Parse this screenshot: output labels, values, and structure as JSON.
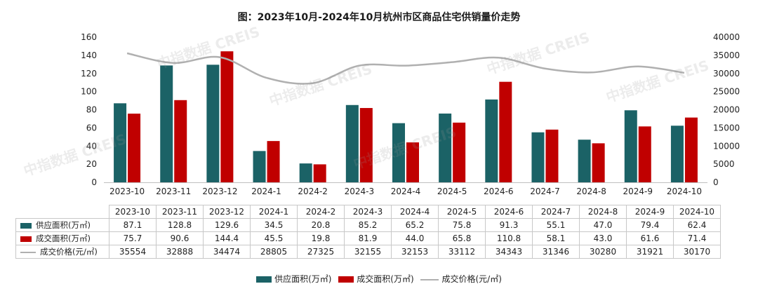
{
  "title": "图：2023年10月-2024年10月杭州市区商品住宅供销量价走势",
  "watermark": "中指数据 CREIS",
  "colors": {
    "supply": "#1b6266",
    "sales": "#c00000",
    "price": "#b0b0b0"
  },
  "legend": {
    "supply": "供应面积(万㎡)",
    "sales": "成交面积(万㎡)",
    "price": "成交价格(元/㎡)"
  },
  "chart_data": {
    "type": "bar",
    "title": "图：2023年10月-2024年10月杭州市区商品住宅供销量价走势",
    "categories": [
      "2023-10",
      "2023-11",
      "2023-12",
      "2024-1",
      "2024-2",
      "2024-3",
      "2024-4",
      "2024-5",
      "2024-6",
      "2024-7",
      "2024-8",
      "2024-9",
      "2024-10"
    ],
    "series": [
      {
        "name": "供应面积(万㎡)",
        "type": "bar",
        "axis": "left",
        "values": [
          87.1,
          128.8,
          129.6,
          34.5,
          20.8,
          85.2,
          65.2,
          75.8,
          91.3,
          55.1,
          47.0,
          79.4,
          62.4
        ]
      },
      {
        "name": "成交面积(万㎡)",
        "type": "bar",
        "axis": "left",
        "values": [
          75.7,
          90.6,
          144.4,
          45.5,
          19.8,
          81.9,
          44.0,
          65.8,
          110.8,
          58.1,
          43.0,
          61.6,
          71.4
        ]
      },
      {
        "name": "成交价格(元/㎡)",
        "type": "line",
        "axis": "right",
        "values": [
          35554,
          32888,
          34474,
          28805,
          27325,
          32155,
          32153,
          33112,
          34343,
          31346,
          30280,
          31921,
          30170
        ]
      }
    ],
    "y_left": {
      "min": 0,
      "max": 160,
      "step": 20,
      "ticks": [
        "0",
        "20",
        "40",
        "60",
        "80",
        "100",
        "120",
        "140",
        "160"
      ]
    },
    "y_right": {
      "min": 0,
      "max": 40000,
      "step": 5000,
      "ticks": [
        "0",
        "5000",
        "10000",
        "15000",
        "20000",
        "25000",
        "30000",
        "35000",
        "40000"
      ]
    },
    "grid": false,
    "legend_position": "bottom"
  },
  "table": {
    "rows": [
      {
        "label": "供应面积(万㎡)",
        "values": [
          "87.1",
          "128.8",
          "129.6",
          "34.5",
          "20.8",
          "85.2",
          "65.2",
          "75.8",
          "91.3",
          "55.1",
          "47.0",
          "79.4",
          "62.4"
        ]
      },
      {
        "label": "成交面积(万㎡)",
        "values": [
          "75.7",
          "90.6",
          "144.4",
          "45.5",
          "19.8",
          "81.9",
          "44.0",
          "65.8",
          "110.8",
          "58.1",
          "43.0",
          "61.6",
          "71.4"
        ]
      },
      {
        "label": "成交价格(元/㎡)",
        "values": [
          "35554",
          "32888",
          "34474",
          "28805",
          "27325",
          "32155",
          "32153",
          "33112",
          "34343",
          "31346",
          "30280",
          "31921",
          "30170"
        ]
      }
    ]
  }
}
